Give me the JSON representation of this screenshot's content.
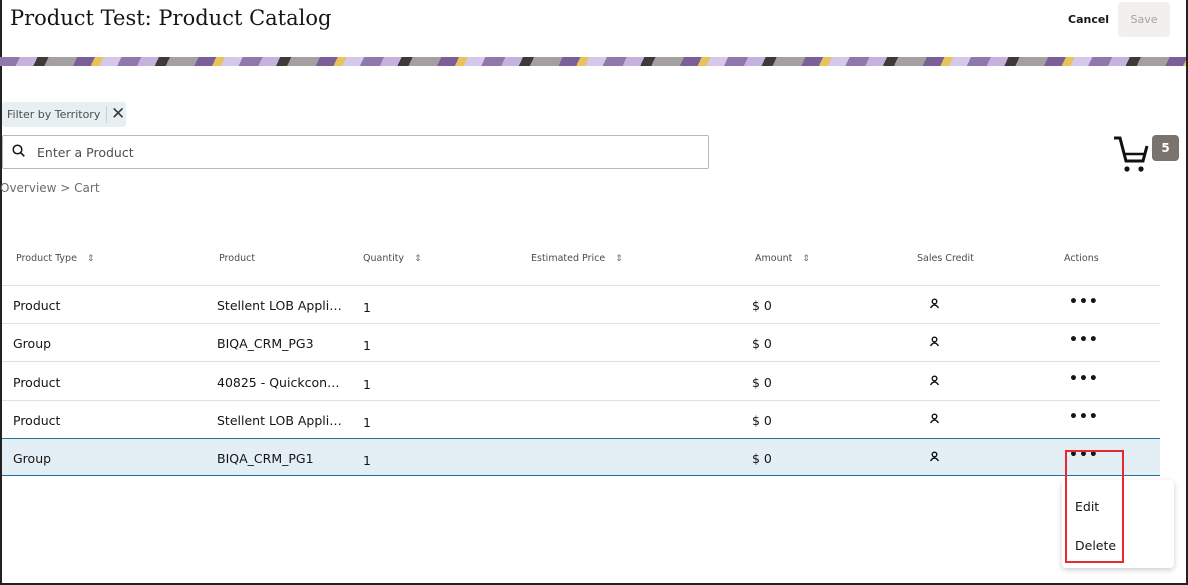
{
  "header": {
    "title": "Product Test: Product Catalog",
    "cancel_label": "Cancel",
    "save_label": "Save"
  },
  "filter": {
    "chip_label": "Filter by Territory"
  },
  "search": {
    "placeholder": "Enter a Product"
  },
  "breadcrumb": "Overview > Cart",
  "cart": {
    "count": "5"
  },
  "table": {
    "columns": [
      "Product Type",
      "Product",
      "Quantity",
      "Estimated Price",
      "Amount",
      "Sales Credit",
      "Actions"
    ],
    "rows": [
      {
        "type": "Product",
        "product": "Stellent LOB Appli…",
        "qty": "1",
        "price": "",
        "amount": "$ 0"
      },
      {
        "type": "Group",
        "product": "BIQA_CRM_PG3",
        "qty": "1",
        "price": "",
        "amount": "$ 0"
      },
      {
        "type": "Product",
        "product": "40825 - Quickcon…",
        "qty": "1",
        "price": "",
        "amount": "$ 0"
      },
      {
        "type": "Product",
        "product": "Stellent LOB Appli…",
        "qty": "1",
        "price": "",
        "amount": "$ 0"
      },
      {
        "type": "Group",
        "product": "BIQA_CRM_PG1",
        "qty": "1",
        "price": "",
        "amount": "$ 0",
        "selected": true
      }
    ]
  },
  "actions_menu": {
    "items": [
      "Edit",
      "Delete"
    ]
  },
  "colors": {
    "selected_row": "#e3eff5",
    "highlight": "#e8282f",
    "badge": "#7a736e"
  }
}
